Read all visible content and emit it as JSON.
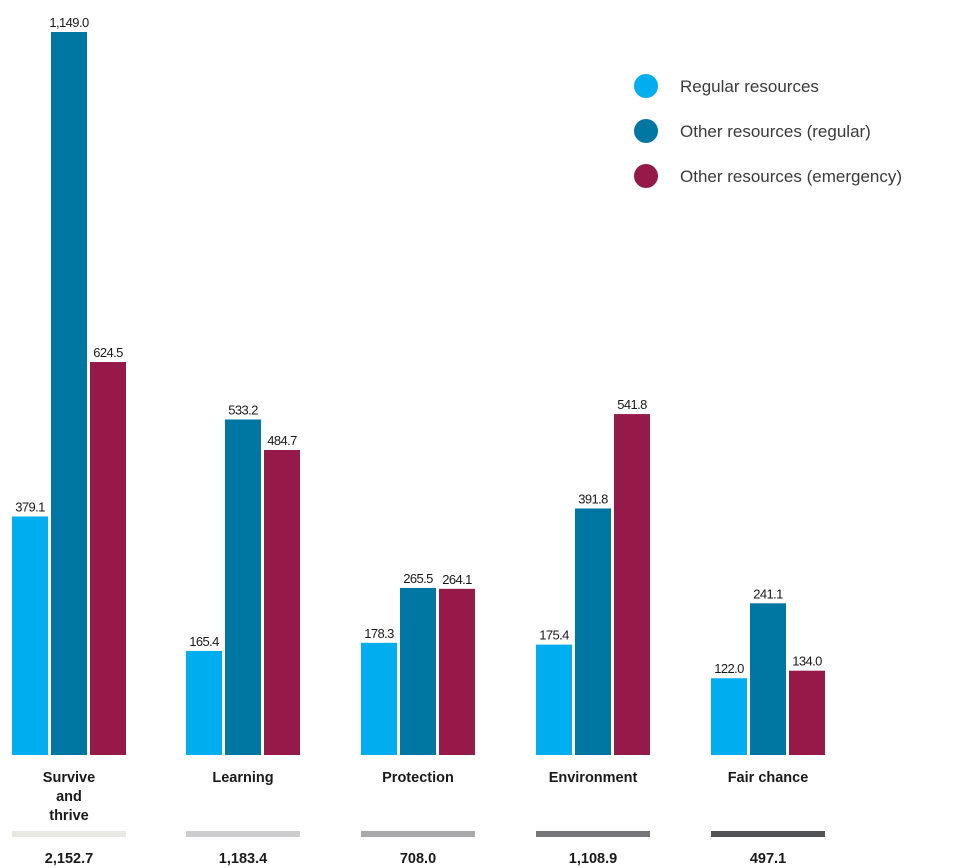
{
  "chart_data": {
    "type": "bar",
    "categories": [
      "Survive and thrive",
      "Learning",
      "Protection",
      "Environment",
      "Fair chance"
    ],
    "category_lines": [
      [
        "Survive",
        "and",
        "thrive"
      ],
      [
        "Learning"
      ],
      [
        "Protection"
      ],
      [
        "Environment"
      ],
      [
        "Fair chance"
      ]
    ],
    "series": [
      {
        "name": "Regular resources",
        "color": "#00AEEF",
        "values": [
          379.1,
          165.4,
          178.3,
          175.4,
          122.0
        ],
        "labels": [
          "379.1",
          "165.4",
          "178.3",
          "175.4",
          "122.0"
        ]
      },
      {
        "name": "Other resources (regular)",
        "color": "#0077A3",
        "values": [
          1149.0,
          533.2,
          265.5,
          391.8,
          241.1
        ],
        "labels": [
          "1,149.0",
          "533.2",
          "265.5",
          "391.8",
          "241.1"
        ]
      },
      {
        "name": "Other resources (emergency)",
        "color": "#961A49",
        "values": [
          624.5,
          484.7,
          264.1,
          541.8,
          134.0
        ],
        "labels": [
          "624.5",
          "484.7",
          "264.1",
          "541.8",
          "134.0"
        ]
      }
    ],
    "totals": [
      "2,152.7",
      "1,183.4",
      "708.0",
      "1,108.9",
      "497.1"
    ],
    "total_bar_colors": [
      "#E8E8E4",
      "#CDCDCF",
      "#A9A8AA",
      "#76767A",
      "#505256"
    ],
    "ylim": [
      0,
      1149.0
    ],
    "legend_position": "top-right",
    "grid": false,
    "title": "",
    "xlabel": "",
    "ylabel": ""
  }
}
